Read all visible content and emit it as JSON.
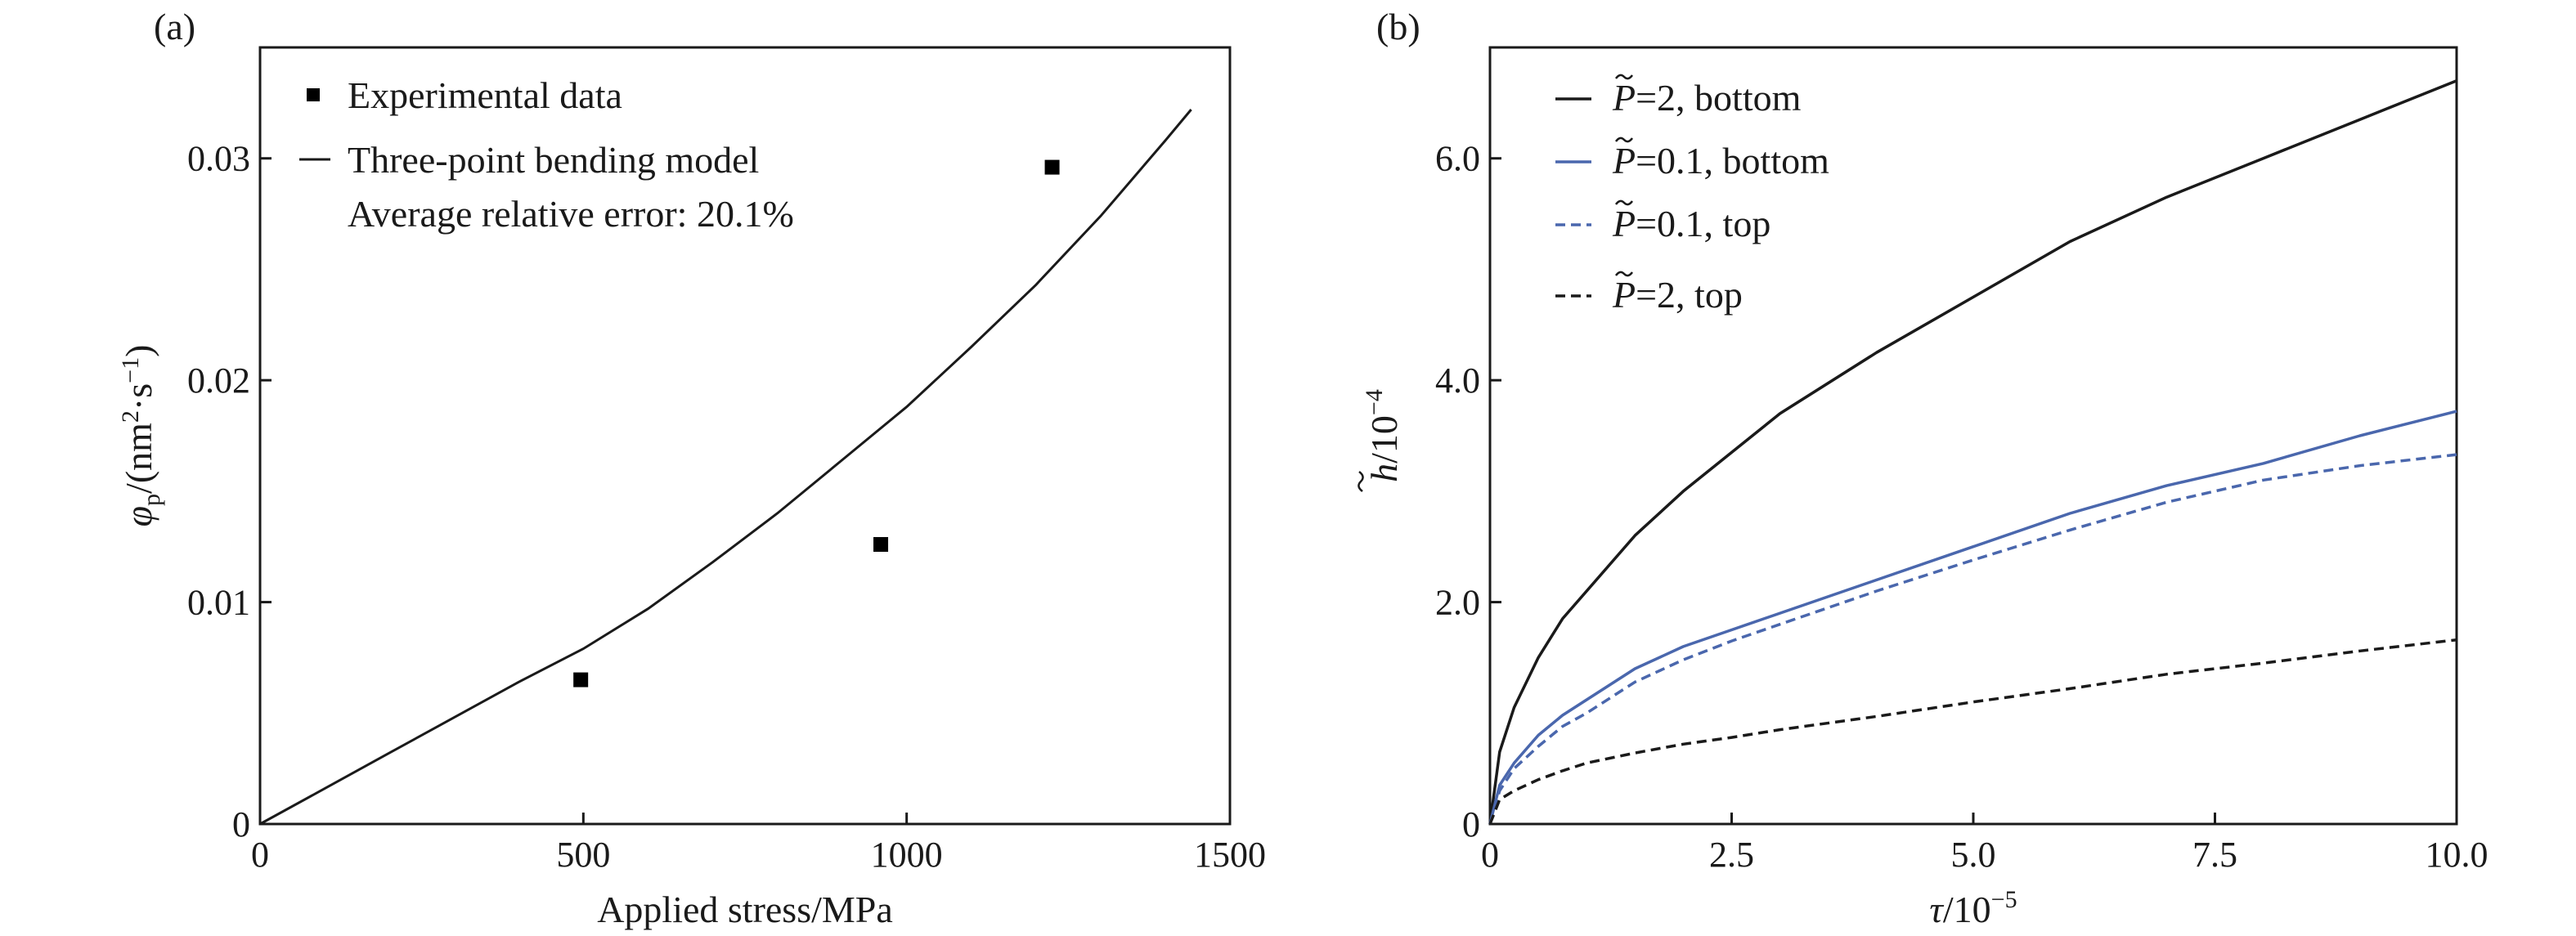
{
  "chart_data": [
    {
      "panel": "(a)",
      "type": "scatter",
      "xlabel": "Applied stress/MPa",
      "ylabel": "φp/(nm²·s⁻¹)",
      "ylabel_parts": {
        "main": "φ",
        "sub": "p",
        "open": "/(nm",
        "sup1": "2",
        "mid": "·s",
        "sup2": "−1",
        "close": ")"
      },
      "xlim": [
        0,
        1500
      ],
      "ylim": [
        0,
        0.035
      ],
      "xticks": [
        0,
        500,
        1000,
        1500
      ],
      "xtick_labels": [
        "0",
        "500",
        "1000",
        "1500"
      ],
      "yticks": [
        0,
        0.01,
        0.02,
        0.03
      ],
      "ytick_labels": [
        "0",
        "0.01",
        "0.02",
        "0.03"
      ],
      "legend_position": "top-left",
      "series": [
        {
          "name": "Experimental data",
          "kind": "scatter",
          "marker": "square",
          "color": "#000000",
          "x": [
            496,
            960,
            1225
          ],
          "y": [
            0.0065,
            0.0126,
            0.0296
          ]
        },
        {
          "name": "Three-point bending model",
          "kind": "line",
          "color": "#1a1a1a",
          "x": [
            0,
            100,
            200,
            300,
            400,
            500,
            600,
            700,
            800,
            900,
            1000,
            1100,
            1200,
            1300,
            1400,
            1440
          ],
          "y": [
            0,
            0.0016,
            0.0032,
            0.0048,
            0.0064,
            0.0079,
            0.0097,
            0.0118,
            0.014,
            0.0164,
            0.0188,
            0.0215,
            0.0243,
            0.0274,
            0.0308,
            0.0322
          ]
        }
      ],
      "annotations": [
        "Average relative error: 20.1%"
      ]
    },
    {
      "panel": "(b)",
      "type": "line",
      "xlabel": "τ/10⁻⁵",
      "xlabel_parts": {
        "main": "τ",
        "unit": "/10",
        "sup": "−5"
      },
      "ylabel": "h̃/10⁻⁴",
      "ylabel_parts": {
        "main": "h",
        "unit": "/10",
        "sup": "−4"
      },
      "xlim": [
        0,
        10
      ],
      "ylim": [
        0,
        7
      ],
      "xticks": [
        0,
        2.5,
        5,
        7.5,
        10
      ],
      "xtick_labels": [
        "0",
        "2.5",
        "5.0",
        "7.5",
        "10.0"
      ],
      "yticks": [
        0,
        2,
        4,
        6
      ],
      "ytick_labels": [
        "0",
        "2.0",
        "4.0",
        "6.0"
      ],
      "legend_position": "top-left",
      "series": [
        {
          "name": "P̃=2, bottom",
          "legend_parts": {
            "sym": "P",
            "rest": "=2, bottom"
          },
          "color": "#1a1a1a",
          "dash": "solid",
          "x": [
            0,
            0.1,
            0.25,
            0.5,
            0.75,
            1,
            1.5,
            2,
            2.5,
            3,
            4,
            5,
            6,
            7,
            8,
            9,
            10
          ],
          "y": [
            0,
            0.65,
            1.05,
            1.5,
            1.85,
            2.1,
            2.6,
            3.0,
            3.35,
            3.7,
            4.25,
            4.75,
            5.25,
            5.65,
            6.0,
            6.35,
            6.7
          ]
        },
        {
          "name": "P̃=0.1, bottom",
          "legend_parts": {
            "sym": "P",
            "rest": "=0.1, bottom"
          },
          "color": "#4a67ad",
          "dash": "solid",
          "x": [
            0,
            0.1,
            0.25,
            0.5,
            0.75,
            1,
            1.5,
            2,
            2.5,
            3,
            4,
            5,
            6,
            7,
            8,
            9,
            10
          ],
          "y": [
            0,
            0.35,
            0.55,
            0.8,
            0.98,
            1.12,
            1.4,
            1.6,
            1.75,
            1.9,
            2.2,
            2.5,
            2.8,
            3.05,
            3.25,
            3.5,
            3.72
          ]
        },
        {
          "name": "P̃=0.1, top",
          "legend_parts": {
            "sym": "P",
            "rest": "=0.1, top"
          },
          "color": "#4a67ad",
          "dash": "dashed",
          "x": [
            0,
            0.1,
            0.25,
            0.5,
            0.75,
            1,
            1.5,
            2,
            2.5,
            3,
            4,
            5,
            6,
            7,
            8,
            9,
            10
          ],
          "y": [
            0,
            0.3,
            0.5,
            0.7,
            0.88,
            1.0,
            1.28,
            1.48,
            1.65,
            1.8,
            2.1,
            2.38,
            2.65,
            2.9,
            3.1,
            3.23,
            3.33
          ]
        },
        {
          "name": "P̃=2, top",
          "legend_parts": {
            "sym": "P",
            "rest": "=2, top"
          },
          "color": "#1a1a1a",
          "dash": "dashed",
          "x": [
            0,
            0.1,
            0.25,
            0.5,
            0.75,
            1,
            1.5,
            2,
            2.5,
            3,
            4,
            5,
            6,
            7,
            8,
            9,
            10
          ],
          "y": [
            0,
            0.22,
            0.3,
            0.4,
            0.48,
            0.55,
            0.64,
            0.72,
            0.78,
            0.85,
            0.97,
            1.1,
            1.22,
            1.35,
            1.45,
            1.56,
            1.66
          ]
        }
      ]
    }
  ]
}
